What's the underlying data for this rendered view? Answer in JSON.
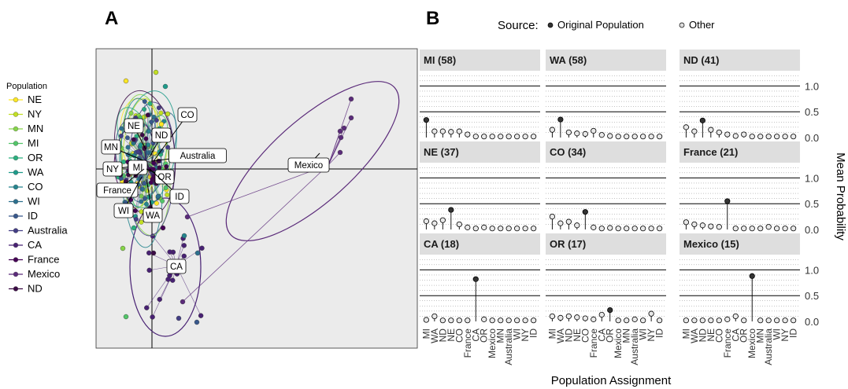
{
  "panels": {
    "a_label": "A",
    "b_label": "B"
  },
  "legend": {
    "title": "Population",
    "items": [
      {
        "label": "NE",
        "color": "#fde725"
      },
      {
        "label": "NY",
        "color": "#c2df23"
      },
      {
        "label": "MN",
        "color": "#86d549"
      },
      {
        "label": "MI",
        "color": "#52c569"
      },
      {
        "label": "OR",
        "color": "#2ab07f"
      },
      {
        "label": "WA",
        "color": "#1e9b8a"
      },
      {
        "label": "CO",
        "color": "#25858e"
      },
      {
        "label": "WI",
        "color": "#2d708e"
      },
      {
        "label": "ID",
        "color": "#38588c"
      },
      {
        "label": "Australia",
        "color": "#433e85"
      },
      {
        "label": "CA",
        "color": "#482173"
      },
      {
        "label": "France",
        "color": "#440154"
      },
      {
        "label": "Mexico",
        "color": "#5b2b7a"
      },
      {
        "label": "ND",
        "color": "#3b0b45"
      }
    ]
  },
  "source_legend": {
    "title": "Source:",
    "items": [
      {
        "label": "Original Population",
        "fill": "#333333"
      },
      {
        "label": "Other",
        "fill": "#dddddd"
      }
    ]
  },
  "chart_data": [
    {
      "type": "scatter",
      "panel": "A",
      "description_labels": [
        "NE",
        "NY",
        "MN",
        "MI",
        "OR",
        "WA",
        "CO",
        "WI",
        "ID",
        "Australia",
        "CA",
        "France",
        "Mexico",
        "ND"
      ],
      "group_labels": [
        {
          "label": "CO",
          "x": 0.22,
          "y": 0.35
        },
        {
          "label": "NE",
          "x": -0.12,
          "y": 0.28
        },
        {
          "label": "ND",
          "x": 0.15,
          "y": 0.2
        },
        {
          "label": "MN",
          "x": -0.28,
          "y": 0.13
        },
        {
          "label": "Australia",
          "x": 0.38,
          "y": 0.08
        },
        {
          "label": "NY",
          "x": -0.28,
          "y": 0.0
        },
        {
          "label": "MI",
          "x": -0.1,
          "y": 0.0
        },
        {
          "label": "OR",
          "x": 0.1,
          "y": -0.04
        },
        {
          "label": "France",
          "x": -0.35,
          "y": -0.13
        },
        {
          "label": "ID",
          "x": 0.22,
          "y": -0.18
        },
        {
          "label": "WI",
          "x": -0.2,
          "y": -0.28
        },
        {
          "label": "WA",
          "x": 0.0,
          "y": -0.3
        },
        {
          "label": "Mexico",
          "x": 1.9,
          "y": 0.03
        },
        {
          "label": "CA",
          "x": 0.18,
          "y": -0.65
        }
      ]
    },
    {
      "type": "bar",
      "panel": "B",
      "subtype": "lollipop",
      "xlabel": "Population Assignment",
      "ylabel": "Mean Probability",
      "ylim": [
        0,
        1.25
      ],
      "yticks": [
        0.0,
        0.5,
        1.0
      ],
      "categories": [
        "MI",
        "WA",
        "ND",
        "NE",
        "CO",
        "France",
        "CA",
        "OR",
        "Mexico",
        "MN",
        "Australia",
        "WI",
        "NY",
        "ID"
      ],
      "facets": [
        {
          "title": "MI (58)",
          "original": "MI",
          "values": [
            0.34,
            0.12,
            0.12,
            0.11,
            0.12,
            0.06,
            0.02,
            0.02,
            0.02,
            0.02,
            0.02,
            0.02,
            0.02,
            0.02
          ]
        },
        {
          "title": "WA (58)",
          "original": "WA",
          "values": [
            0.15,
            0.35,
            0.1,
            0.08,
            0.07,
            0.13,
            0.05,
            0.03,
            0.02,
            0.02,
            0.02,
            0.02,
            0.02,
            0.02
          ]
        },
        {
          "title": "ND (41)",
          "original": "ND",
          "values": [
            0.2,
            0.12,
            0.33,
            0.15,
            0.1,
            0.06,
            0.03,
            0.06,
            0.02,
            0.02,
            0.02,
            0.02,
            0.02,
            0.02
          ]
        },
        {
          "title": "NE (37)",
          "original": "NE",
          "values": [
            0.16,
            0.12,
            0.18,
            0.38,
            0.1,
            0.04,
            0.02,
            0.04,
            0.02,
            0.02,
            0.02,
            0.02,
            0.02,
            0.02
          ]
        },
        {
          "title": "CO (34)",
          "original": "CO",
          "values": [
            0.25,
            0.12,
            0.15,
            0.08,
            0.34,
            0.04,
            0.02,
            0.03,
            0.02,
            0.02,
            0.02,
            0.02,
            0.02,
            0.02
          ]
        },
        {
          "title": "France (21)",
          "original": "France",
          "values": [
            0.14,
            0.1,
            0.08,
            0.06,
            0.05,
            0.55,
            0.02,
            0.02,
            0.02,
            0.02,
            0.05,
            0.02,
            0.02,
            0.02
          ]
        },
        {
          "title": "CA (18)",
          "original": "CA",
          "values": [
            0.03,
            0.1,
            0.02,
            0.02,
            0.02,
            0.02,
            0.82,
            0.04,
            0.02,
            0.02,
            0.02,
            0.02,
            0.02,
            0.02
          ]
        },
        {
          "title": "OR (17)",
          "original": "OR",
          "values": [
            0.1,
            0.07,
            0.1,
            0.08,
            0.06,
            0.04,
            0.13,
            0.22,
            0.02,
            0.02,
            0.04,
            0.02,
            0.15,
            0.02
          ]
        },
        {
          "title": "Mexico (15)",
          "original": "Mexico",
          "values": [
            0.02,
            0.02,
            0.02,
            0.02,
            0.02,
            0.04,
            0.1,
            0.02,
            0.88,
            0.02,
            0.02,
            0.02,
            0.02,
            0.02
          ]
        }
      ]
    }
  ]
}
